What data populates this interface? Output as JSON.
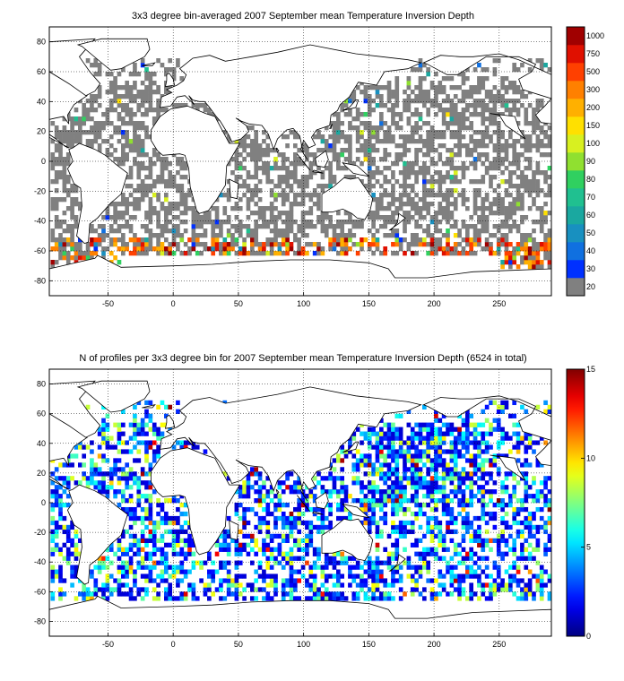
{
  "chart_data": [
    {
      "type": "heatmap",
      "title": "3x3 degree bin-averaged 2007 September mean Temperature Inversion Depth",
      "xlabel": "",
      "ylabel": "",
      "xlim": [
        -95,
        290
      ],
      "ylim": [
        -90,
        90
      ],
      "xticks": [
        -50,
        0,
        50,
        100,
        150,
        200,
        250
      ],
      "yticks": [
        80,
        60,
        40,
        20,
        0,
        -20,
        -40,
        -60,
        -80
      ],
      "grid": true,
      "bin_size_deg": 3,
      "missing_color": "#808080",
      "colorbar": {
        "labels": [
          "20",
          "30",
          "40",
          "50",
          "60",
          "70",
          "80",
          "90",
          "100",
          "150",
          "200",
          "300",
          "500",
          "750",
          "1000"
        ],
        "colors": [
          "#808080",
          "#0030ff",
          "#1070e0",
          "#1890c0",
          "#1aa8a0",
          "#20c090",
          "#30d060",
          "#90e030",
          "#d8f020",
          "#ffe000",
          "#ffb000",
          "#ff8000",
          "#ff4000",
          "#e01000",
          "#a00000"
        ]
      }
    },
    {
      "type": "heatmap",
      "title": "N of profiles per 3x3 degree bin for 2007 September mean Temperature Inversion Depth  (6524 in total)",
      "xlabel": "",
      "ylabel": "",
      "xlim": [
        -95,
        290
      ],
      "ylim": [
        -90,
        90
      ],
      "xticks": [
        -50,
        0,
        50,
        100,
        150,
        200,
        250
      ],
      "yticks": [
        80,
        60,
        40,
        20,
        0,
        -20,
        -40,
        -60,
        -80
      ],
      "grid": true,
      "bin_size_deg": 3,
      "total_profiles": 6524,
      "colorbar": {
        "range": [
          0,
          15
        ],
        "ticks": [
          "0",
          "5",
          "10",
          "15"
        ],
        "colormap": "jet"
      }
    }
  ]
}
